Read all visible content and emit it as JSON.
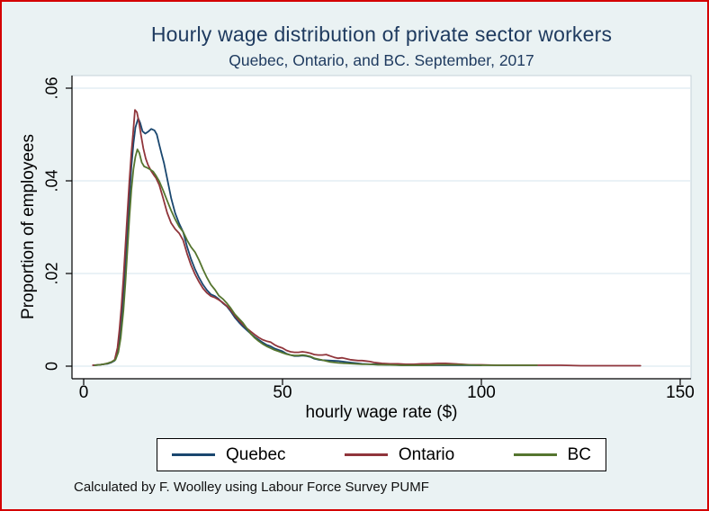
{
  "frame": {
    "background": "#eaf2f3",
    "border_color": "#d40000"
  },
  "title": "Hourly wage distribution of private sector workers",
  "subtitle": "Quebec, Ontario, and BC. September, 2017",
  "note": "Calculated by F. Woolley using Labour Force Survey PUMF",
  "axes": {
    "x": {
      "label": "hourly wage rate ($)",
      "ticks": [
        "0",
        "50",
        "100",
        "150"
      ]
    },
    "y": {
      "label": "Proportion of employees",
      "ticks": [
        "0",
        ".02",
        ".04",
        ".06"
      ]
    }
  },
  "legend": [
    {
      "label": "Quebec",
      "color": "#1a476f"
    },
    {
      "label": "Ontario",
      "color": "#90353b"
    },
    {
      "label": "BC",
      "color": "#55752f"
    }
  ],
  "chart_data": {
    "type": "line",
    "title": "Hourly wage distribution of private sector workers",
    "subtitle": "Quebec, Ontario, and BC. September, 2017",
    "xlabel": "hourly wage rate ($)",
    "ylabel": "Proportion of employees",
    "xlim": [
      0,
      155
    ],
    "ylim": [
      0,
      0.06
    ],
    "x_ticks": [
      0,
      50,
      100,
      150
    ],
    "y_ticks": [
      0,
      0.02,
      0.04,
      0.06
    ],
    "grid": true,
    "legend_position": "bottom",
    "series": [
      {
        "name": "Quebec",
        "color": "#1a476f",
        "points": [
          [
            2.5,
            0.0002
          ],
          [
            4,
            0.0003
          ],
          [
            5,
            0.0004
          ],
          [
            6,
            0.0005
          ],
          [
            7,
            0.0008
          ],
          [
            7.8,
            0.0012
          ],
          [
            8.5,
            0.003
          ],
          [
            9,
            0.006
          ],
          [
            9.5,
            0.01
          ],
          [
            10,
            0.016
          ],
          [
            10.5,
            0.022
          ],
          [
            11,
            0.029
          ],
          [
            11.5,
            0.036
          ],
          [
            12,
            0.043
          ],
          [
            12.5,
            0.048
          ],
          [
            13,
            0.0515
          ],
          [
            13.7,
            0.0535
          ],
          [
            14.2,
            0.0525
          ],
          [
            14.8,
            0.0507
          ],
          [
            15.5,
            0.0502
          ],
          [
            16.2,
            0.0506
          ],
          [
            17,
            0.0512
          ],
          [
            17.8,
            0.0509
          ],
          [
            18.4,
            0.05
          ],
          [
            19,
            0.0478
          ],
          [
            19.6,
            0.0458
          ],
          [
            20.2,
            0.0438
          ],
          [
            21,
            0.0405
          ],
          [
            22,
            0.0363
          ],
          [
            23,
            0.033
          ],
          [
            24,
            0.0308
          ],
          [
            25,
            0.029
          ],
          [
            26,
            0.0258
          ],
          [
            27,
            0.0231
          ],
          [
            28,
            0.0209
          ],
          [
            29,
            0.0191
          ],
          [
            30,
            0.0176
          ],
          [
            31,
            0.0164
          ],
          [
            32,
            0.0155
          ],
          [
            33,
            0.0151
          ],
          [
            33.8,
            0.0146
          ],
          [
            35,
            0.0136
          ],
          [
            36,
            0.0129
          ],
          [
            37,
            0.0118
          ],
          [
            38,
            0.0105
          ],
          [
            39,
            0.0095
          ],
          [
            40,
            0.0086
          ],
          [
            41,
            0.0078
          ],
          [
            42,
            0.007
          ],
          [
            43,
            0.0063
          ],
          [
            44,
            0.0057
          ],
          [
            45,
            0.0051
          ],
          [
            46,
            0.0046
          ],
          [
            47,
            0.0043
          ],
          [
            48,
            0.0038
          ],
          [
            49,
            0.0035
          ],
          [
            50,
            0.0032
          ],
          [
            51,
            0.0027
          ],
          [
            52,
            0.0024
          ],
          [
            53,
            0.0022
          ],
          [
            54,
            0.0022
          ],
          [
            55,
            0.0023
          ],
          [
            56,
            0.0022
          ],
          [
            57,
            0.002
          ],
          [
            58,
            0.0016
          ],
          [
            59,
            0.0014
          ],
          [
            60,
            0.0013
          ],
          [
            62,
            0.0012
          ],
          [
            64,
            0.0011
          ],
          [
            66,
            0.0009
          ],
          [
            68,
            0.0007
          ],
          [
            70,
            0.0005
          ],
          [
            72,
            0.0004
          ],
          [
            74,
            0.0004
          ],
          [
            76,
            0.0003
          ],
          [
            78,
            0.0003
          ],
          [
            80,
            0.0002
          ],
          [
            84,
            0.0002
          ],
          [
            88,
            0.0002
          ],
          [
            92,
            0.0002
          ],
          [
            96,
            0.0002
          ],
          [
            100,
            0.0002
          ]
        ]
      },
      {
        "name": "Ontario",
        "color": "#90353b",
        "points": [
          [
            2.3,
            0.0002
          ],
          [
            4,
            0.0003
          ],
          [
            5,
            0.0004
          ],
          [
            6,
            0.0006
          ],
          [
            7,
            0.0009
          ],
          [
            7.8,
            0.0014
          ],
          [
            8.5,
            0.004
          ],
          [
            9,
            0.008
          ],
          [
            9.5,
            0.013
          ],
          [
            10,
            0.019
          ],
          [
            10.5,
            0.026
          ],
          [
            11,
            0.033
          ],
          [
            11.5,
            0.04
          ],
          [
            12,
            0.046
          ],
          [
            12.4,
            0.05
          ],
          [
            12.9,
            0.0553
          ],
          [
            13.4,
            0.0548
          ],
          [
            13.9,
            0.0527
          ],
          [
            14.4,
            0.05
          ],
          [
            15,
            0.047
          ],
          [
            15.6,
            0.0448
          ],
          [
            16.2,
            0.0434
          ],
          [
            17,
            0.0421
          ],
          [
            17.6,
            0.0413
          ],
          [
            18.2,
            0.0406
          ],
          [
            19,
            0.0391
          ],
          [
            20,
            0.0362
          ],
          [
            21,
            0.0331
          ],
          [
            22,
            0.0309
          ],
          [
            23,
            0.0296
          ],
          [
            24,
            0.0287
          ],
          [
            25,
            0.0272
          ],
          [
            26,
            0.0243
          ],
          [
            27,
            0.0218
          ],
          [
            28,
            0.0198
          ],
          [
            29,
            0.0182
          ],
          [
            30,
            0.0168
          ],
          [
            31,
            0.0158
          ],
          [
            32,
            0.0151
          ],
          [
            33,
            0.0148
          ],
          [
            34,
            0.0143
          ],
          [
            35,
            0.0137
          ],
          [
            36,
            0.013
          ],
          [
            37,
            0.0121
          ],
          [
            38,
            0.0109
          ],
          [
            39,
            0.0099
          ],
          [
            40,
            0.009
          ],
          [
            41,
            0.0082
          ],
          [
            42,
            0.0075
          ],
          [
            43,
            0.0068
          ],
          [
            44,
            0.0062
          ],
          [
            45,
            0.0057
          ],
          [
            46,
            0.0054
          ],
          [
            47,
            0.0052
          ],
          [
            48,
            0.0046
          ],
          [
            49,
            0.0042
          ],
          [
            50,
            0.0039
          ],
          [
            51,
            0.0034
          ],
          [
            52,
            0.0031
          ],
          [
            53,
            0.003
          ],
          [
            54,
            0.003
          ],
          [
            55,
            0.0031
          ],
          [
            56,
            0.003
          ],
          [
            57,
            0.0028
          ],
          [
            58,
            0.0025
          ],
          [
            59,
            0.0024
          ],
          [
            60,
            0.0024
          ],
          [
            61,
            0.0025
          ],
          [
            62,
            0.0022
          ],
          [
            63,
            0.0019
          ],
          [
            64,
            0.0017
          ],
          [
            65,
            0.0018
          ],
          [
            66,
            0.0016
          ],
          [
            67,
            0.0014
          ],
          [
            68,
            0.0013
          ],
          [
            69,
            0.0012
          ],
          [
            70,
            0.0012
          ],
          [
            71,
            0.0011
          ],
          [
            72,
            0.001
          ],
          [
            73,
            0.0008
          ],
          [
            75,
            0.0006
          ],
          [
            77,
            0.0005
          ],
          [
            79,
            0.0005
          ],
          [
            81,
            0.0004
          ],
          [
            83,
            0.0004
          ],
          [
            85,
            0.0005
          ],
          [
            87,
            0.0005
          ],
          [
            89,
            0.0006
          ],
          [
            91,
            0.0006
          ],
          [
            93,
            0.0005
          ],
          [
            95,
            0.0004
          ],
          [
            97,
            0.0003
          ],
          [
            100,
            0.0003
          ],
          [
            104,
            0.0002
          ],
          [
            108,
            0.0002
          ],
          [
            112,
            0.0002
          ],
          [
            116,
            0.0002
          ],
          [
            120,
            0.0002
          ],
          [
            125,
            0.0001
          ],
          [
            130,
            0.0001
          ],
          [
            135,
            0.0001
          ],
          [
            140,
            0.0001
          ]
        ]
      },
      {
        "name": "BC",
        "color": "#55752f",
        "points": [
          [
            2.8,
            0.0002
          ],
          [
            4,
            0.0003
          ],
          [
            5,
            0.0004
          ],
          [
            6,
            0.0006
          ],
          [
            7,
            0.0009
          ],
          [
            8,
            0.0014
          ],
          [
            8.7,
            0.003
          ],
          [
            9.3,
            0.006
          ],
          [
            10,
            0.012
          ],
          [
            10.5,
            0.018
          ],
          [
            11,
            0.025
          ],
          [
            11.5,
            0.032
          ],
          [
            12,
            0.038
          ],
          [
            12.5,
            0.0425
          ],
          [
            13,
            0.0452
          ],
          [
            13.5,
            0.0468
          ],
          [
            14,
            0.046
          ],
          [
            14.6,
            0.044
          ],
          [
            15.2,
            0.0431
          ],
          [
            16,
            0.0428
          ],
          [
            16.8,
            0.0424
          ],
          [
            17.5,
            0.042
          ],
          [
            18.2,
            0.0411
          ],
          [
            19,
            0.0399
          ],
          [
            20,
            0.0379
          ],
          [
            21,
            0.0357
          ],
          [
            22,
            0.0336
          ],
          [
            23,
            0.0317
          ],
          [
            24,
            0.0301
          ],
          [
            25,
            0.029
          ],
          [
            26,
            0.0272
          ],
          [
            27,
            0.0257
          ],
          [
            28,
            0.0246
          ],
          [
            29,
            0.0229
          ],
          [
            30,
            0.0209
          ],
          [
            31,
            0.0191
          ],
          [
            32,
            0.0176
          ],
          [
            33,
            0.0165
          ],
          [
            34,
            0.0152
          ],
          [
            35,
            0.0145
          ],
          [
            36,
            0.0136
          ],
          [
            37,
            0.0125
          ],
          [
            38,
            0.0112
          ],
          [
            39,
            0.0103
          ],
          [
            40,
            0.0094
          ],
          [
            41,
            0.0082
          ],
          [
            42,
            0.007
          ],
          [
            43,
            0.0061
          ],
          [
            44,
            0.0054
          ],
          [
            45,
            0.0048
          ],
          [
            46,
            0.0043
          ],
          [
            47,
            0.0039
          ],
          [
            48,
            0.0035
          ],
          [
            49,
            0.0032
          ],
          [
            50,
            0.0029
          ],
          [
            51,
            0.0026
          ],
          [
            52,
            0.0024
          ],
          [
            53,
            0.0023
          ],
          [
            54,
            0.0023
          ],
          [
            55,
            0.0024
          ],
          [
            56,
            0.0023
          ],
          [
            57,
            0.0021
          ],
          [
            58,
            0.0017
          ],
          [
            59,
            0.0015
          ],
          [
            60,
            0.0013
          ],
          [
            62,
            0.0009
          ],
          [
            64,
            0.0007
          ],
          [
            66,
            0.0006
          ],
          [
            68,
            0.0005
          ],
          [
            70,
            0.0004
          ],
          [
            72,
            0.0004
          ],
          [
            74,
            0.0003
          ],
          [
            76,
            0.0003
          ],
          [
            80,
            0.0002
          ],
          [
            85,
            0.0002
          ],
          [
            90,
            0.0003
          ],
          [
            95,
            0.0003
          ],
          [
            100,
            0.0002
          ],
          [
            105,
            0.0002
          ],
          [
            110,
            0.0002
          ],
          [
            114,
            0.0002
          ]
        ]
      }
    ]
  }
}
